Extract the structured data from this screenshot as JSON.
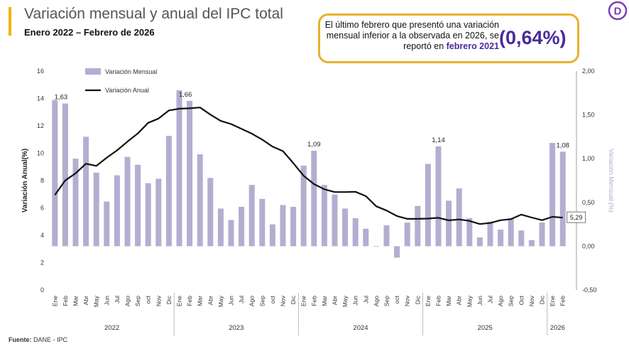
{
  "header": {
    "title": "Variación mensual y anual del IPC total",
    "subtitle": "Enero 2022 – Febrero de 2026"
  },
  "callout": {
    "text_before": "El último febrero que presentó una variación mensual inferior a la observada en 2026, se reportó en",
    "highlight": "febrero 2021",
    "value": "(0,64%)"
  },
  "logo": {
    "letter": "D",
    "icon": "dane-logo-icon",
    "color": "#7b3fb3"
  },
  "source": {
    "label": "Fuente:",
    "text": "DANE - IPC"
  },
  "colors": {
    "bars": "#b3aed1",
    "line": "#111111",
    "accent": "#4a2a9a",
    "callout_border": "#e8b22c",
    "title_bar": "#f0b400"
  },
  "chart_data": {
    "type": "bar+line",
    "legend": [
      "Variación Mensual",
      "Variación Anual"
    ],
    "legend_position": "top-left",
    "ylabel_left": "Variación Anual(%)",
    "ylabel_right": "Variación Mensual (%)",
    "ylim_left": [
      0,
      16
    ],
    "yticks_left": [
      "0",
      "2",
      "4",
      "6",
      "8",
      "10",
      "12",
      "14",
      "16"
    ],
    "ylim_right": [
      -0.5,
      2.0
    ],
    "yticks_right": [
      "-0,50",
      "0,00",
      "0,50",
      "1,00",
      "1,50",
      "2,00"
    ],
    "categories": [
      "Ene",
      "Feb",
      "Mar",
      "Abr",
      "May",
      "Jun",
      "Jul",
      "Ago",
      "Sep",
      "oct",
      "Nov",
      "Dic",
      "Ene",
      "Feb",
      "Mar",
      "Abr",
      "May",
      "Jun",
      "Jul",
      "Ago",
      "Sep",
      "oct",
      "Nov",
      "Dic",
      "Ene",
      "Feb",
      "Mar",
      "Abr",
      "May",
      "Jun",
      "Jul",
      "Ago",
      "Sep",
      "oct",
      "Nov",
      "Dic",
      "Ene",
      "Feb",
      "Mar",
      "Abr",
      "May",
      "Jun",
      "Jul",
      "Ago",
      "Sep",
      "Oct",
      "Nov",
      "Dic",
      "Ene",
      "Feb"
    ],
    "years": [
      {
        "label": "2022",
        "start": 0,
        "end": 11
      },
      {
        "label": "2023",
        "start": 12,
        "end": 23
      },
      {
        "label": "2024",
        "start": 24,
        "end": 35
      },
      {
        "label": "2025",
        "start": 36,
        "end": 47
      },
      {
        "label": "2026",
        "start": 48,
        "end": 49
      }
    ],
    "monthly": [
      1.67,
      1.63,
      1.0,
      1.25,
      0.84,
      0.51,
      0.81,
      1.02,
      0.93,
      0.72,
      0.77,
      1.26,
      1.78,
      1.66,
      1.05,
      0.78,
      0.43,
      0.3,
      0.45,
      0.7,
      0.54,
      0.25,
      0.47,
      0.45,
      0.92,
      1.09,
      0.7,
      0.59,
      0.43,
      0.32,
      0.2,
      0.0,
      0.24,
      -0.13,
      0.27,
      0.46,
      0.94,
      1.14,
      0.52,
      0.66,
      0.32,
      0.1,
      0.28,
      0.19,
      0.32,
      0.18,
      0.07,
      0.27,
      1.18,
      1.08
    ],
    "annual": [
      6.94,
      8.01,
      8.53,
      9.23,
      9.07,
      9.67,
      10.21,
      10.84,
      11.44,
      12.22,
      12.53,
      13.12,
      13.25,
      13.28,
      13.34,
      12.82,
      12.36,
      12.13,
      11.78,
      11.43,
      10.99,
      10.48,
      10.15,
      9.28,
      8.35,
      7.74,
      7.36,
      7.16,
      7.16,
      7.18,
      6.86,
      6.12,
      5.81,
      5.41,
      5.2,
      5.2,
      5.22,
      5.28,
      5.09,
      5.16,
      5.05,
      4.82,
      4.9,
      5.1,
      5.18,
      5.51,
      5.3,
      5.1,
      5.35,
      5.29
    ],
    "data_labels": [
      {
        "index": 1,
        "text": "1,63"
      },
      {
        "index": 13,
        "text": "1,66"
      },
      {
        "index": 25,
        "text": "1,09"
      },
      {
        "index": 37,
        "text": "1,14"
      },
      {
        "index": 49,
        "text": "1,08"
      }
    ],
    "annual_last_label": "5,29"
  }
}
